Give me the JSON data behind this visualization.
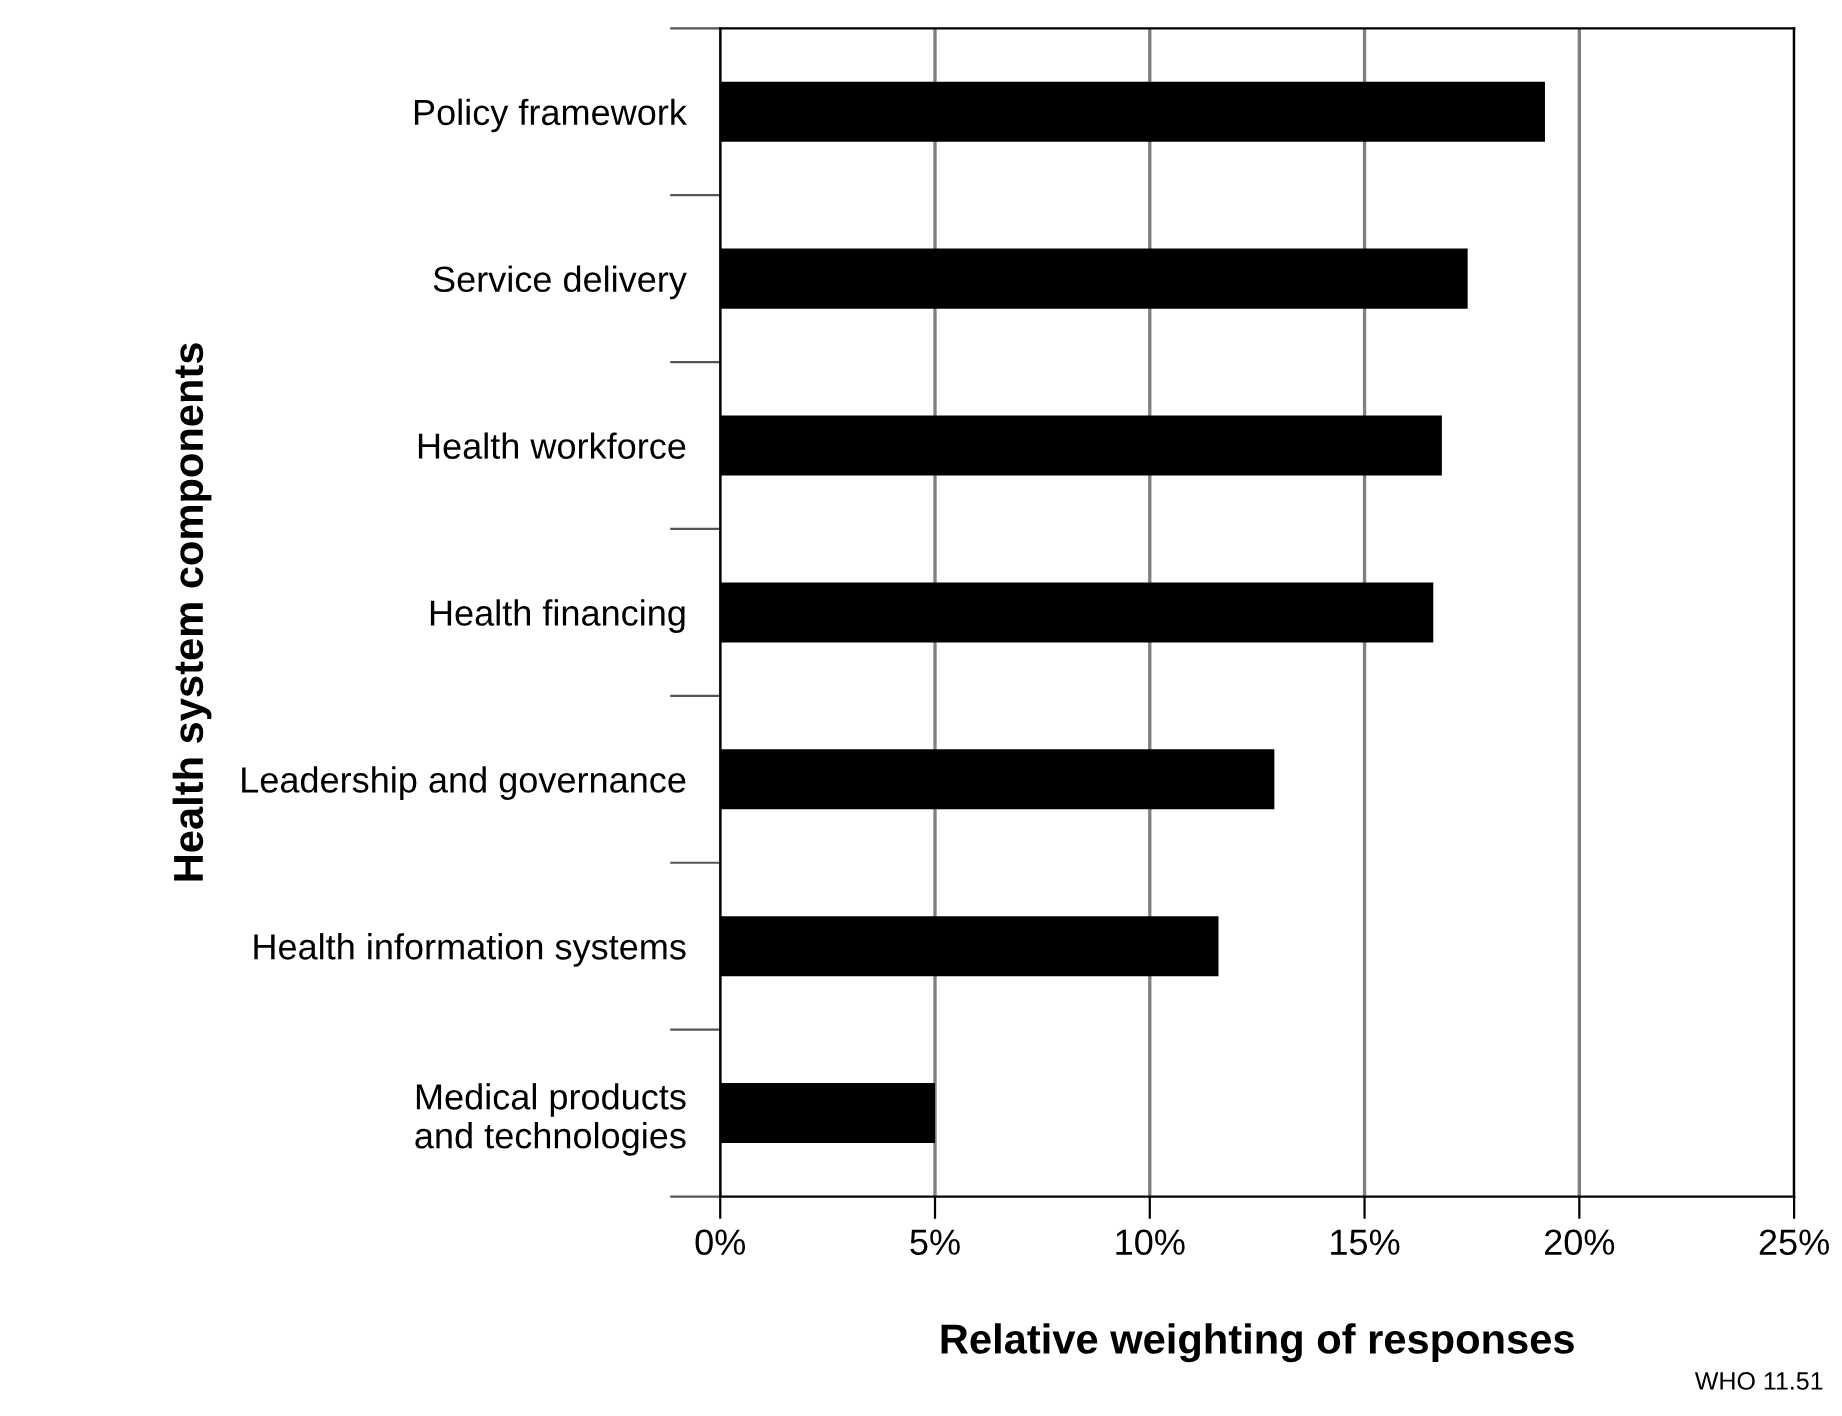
{
  "chart_data": {
    "type": "bar",
    "orientation": "horizontal",
    "categories": [
      "Policy framework",
      "Service delivery",
      "Health workforce",
      "Health financing",
      "Leadership and governance",
      "Health information systems",
      "Medical products\nand technologies"
    ],
    "values": [
      19.2,
      17.4,
      16.8,
      16.6,
      12.9,
      11.6,
      5.0
    ],
    "color": "#000000",
    "xlim": [
      0,
      25
    ],
    "xticks": [
      {
        "value": 0,
        "label": "0%"
      },
      {
        "value": 5,
        "label": "5%"
      },
      {
        "value": 10,
        "label": "10%"
      },
      {
        "value": 15,
        "label": "15%"
      },
      {
        "value": 20,
        "label": "20%"
      },
      {
        "value": 25,
        "label": "25%"
      }
    ],
    "xlabel": "Relative weighting of responses",
    "ylabel": "Health system components",
    "grid": "x",
    "annotations": [
      "WHO 11.51"
    ]
  }
}
